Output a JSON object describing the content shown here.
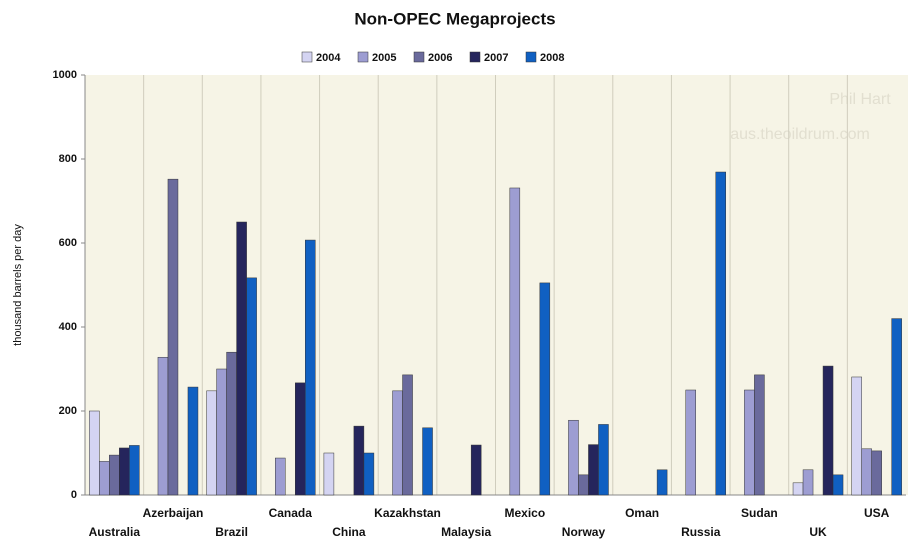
{
  "chart_data": {
    "type": "bar",
    "title": "Non-OPEC Megaprojects",
    "y_label": "thousand barrels per day",
    "watermark": [
      "Phil Hart",
      "aus.theoildrum.com"
    ],
    "categories": [
      "Australia",
      "Azerbaijan",
      "Brazil",
      "Canada",
      "China",
      "Kazakhstan",
      "Malaysia",
      "Mexico",
      "Norway",
      "Oman",
      "Russia",
      "Sudan",
      "UK",
      "USA"
    ],
    "series": [
      {
        "name": "2004",
        "color": "#d4d4f2",
        "values": [
          200,
          null,
          248,
          null,
          100,
          null,
          null,
          null,
          null,
          null,
          null,
          null,
          29,
          281
        ]
      },
      {
        "name": "2005",
        "color": "#9d9dd2",
        "values": [
          80,
          328,
          300,
          88,
          null,
          248,
          null,
          731,
          178,
          null,
          250,
          250,
          60,
          110
        ]
      },
      {
        "name": "2006",
        "color": "#6a6a9c",
        "values": [
          95,
          752,
          340,
          null,
          null,
          286,
          null,
          null,
          48,
          null,
          null,
          286,
          null,
          105
        ]
      },
      {
        "name": "2007",
        "color": "#25255c",
        "values": [
          112,
          null,
          650,
          267,
          164,
          null,
          119,
          null,
          120,
          null,
          null,
          null,
          307,
          null
        ]
      },
      {
        "name": "2008",
        "color": "#1060c2",
        "values": [
          118,
          257,
          517,
          607,
          100,
          160,
          null,
          505,
          168,
          60,
          769,
          null,
          48,
          420
        ]
      }
    ],
    "ylim": [
      0,
      1000
    ],
    "yticks": [
      0,
      200,
      400,
      600,
      800,
      1000
    ],
    "legend": "top",
    "grid": true
  }
}
